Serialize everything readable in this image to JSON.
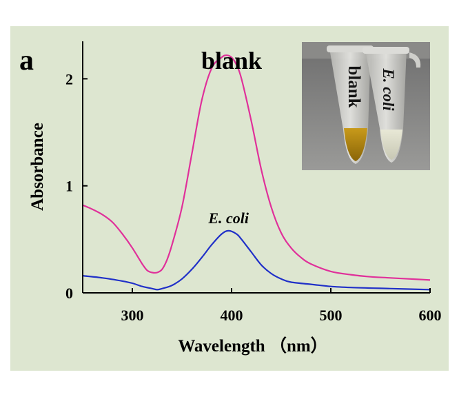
{
  "panel_label": "a",
  "colors": {
    "background": "#dde6d0",
    "axis": "#000000",
    "blank_series": "#e0309a",
    "ecoli_series": "#2030c8"
  },
  "inset_photo": {
    "labels": [
      "blank",
      "E. coli"
    ]
  },
  "chart_data": {
    "type": "line",
    "xlabel": "Wavelength （nm）",
    "ylabel": "Absorbance",
    "xlim": [
      250,
      600
    ],
    "ylim": [
      0,
      2.35
    ],
    "xticks": [
      300,
      400,
      500,
      600
    ],
    "yticks": [
      0,
      1,
      2
    ],
    "grid": false,
    "annotations": [
      {
        "text": "blank",
        "series": "blank"
      },
      {
        "text": "E. coli",
        "series": "E. coli"
      }
    ],
    "series": [
      {
        "name": "blank",
        "x": [
          250,
          260,
          270,
          280,
          290,
          300,
          310,
          315,
          320,
          325,
          330,
          335,
          340,
          350,
          360,
          370,
          380,
          390,
          395,
          400,
          405,
          410,
          420,
          430,
          440,
          450,
          460,
          470,
          480,
          500,
          520,
          540,
          560,
          580,
          600
        ],
        "y": [
          0.82,
          0.78,
          0.73,
          0.66,
          0.55,
          0.42,
          0.27,
          0.21,
          0.19,
          0.19,
          0.22,
          0.31,
          0.45,
          0.8,
          1.3,
          1.8,
          2.1,
          2.2,
          2.22,
          2.2,
          2.13,
          2.0,
          1.6,
          1.15,
          0.8,
          0.56,
          0.42,
          0.33,
          0.27,
          0.2,
          0.17,
          0.15,
          0.14,
          0.13,
          0.12
        ]
      },
      {
        "name": "E. coli",
        "x": [
          250,
          270,
          290,
          300,
          310,
          320,
          325,
          330,
          340,
          350,
          360,
          370,
          380,
          390,
          397,
          405,
          410,
          420,
          430,
          440,
          450,
          460,
          480,
          500,
          520,
          560,
          600
        ],
        "y": [
          0.16,
          0.14,
          0.11,
          0.09,
          0.06,
          0.04,
          0.03,
          0.04,
          0.07,
          0.13,
          0.22,
          0.33,
          0.45,
          0.55,
          0.58,
          0.55,
          0.5,
          0.38,
          0.26,
          0.18,
          0.13,
          0.1,
          0.08,
          0.06,
          0.05,
          0.04,
          0.03
        ]
      }
    ]
  }
}
